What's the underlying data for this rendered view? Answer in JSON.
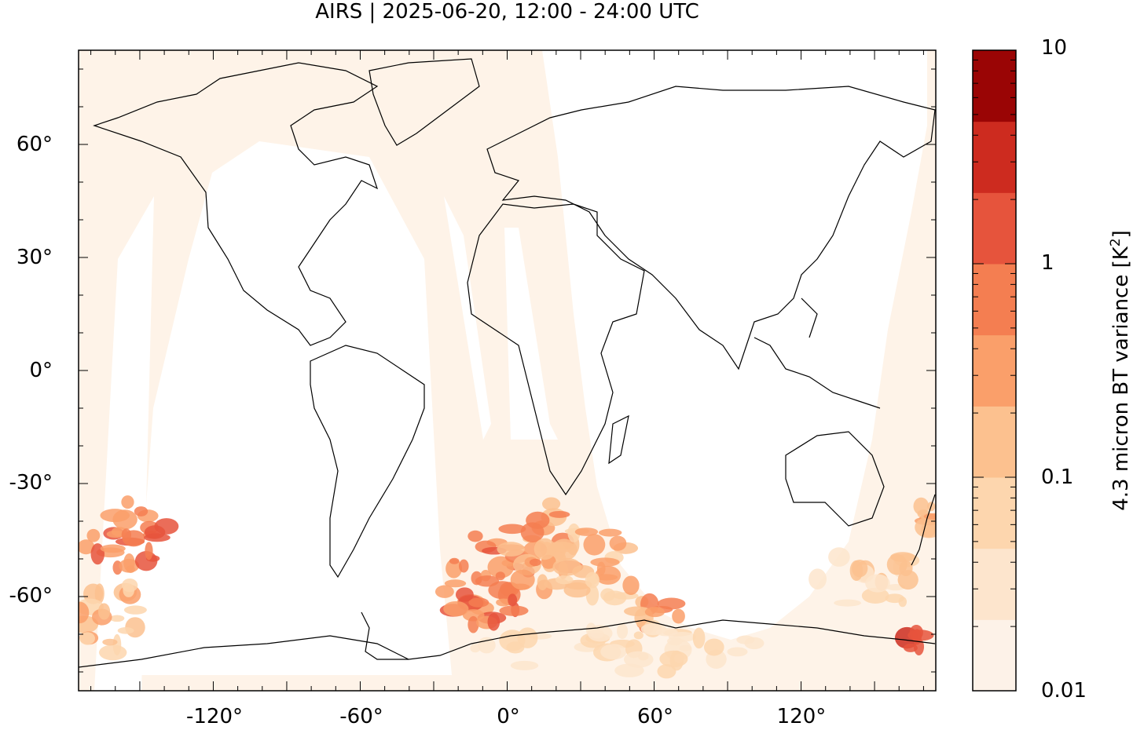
{
  "title": "AIRS | 2025-06-20, 12:00 - 24:00 UTC",
  "map": {
    "projection": "equirectangular",
    "lon_range": [
      -175,
      175
    ],
    "lat_range": [
      -85,
      85
    ],
    "x_ticks": [
      "-120°",
      "-60°",
      "0°",
      "60°",
      "120°"
    ],
    "y_ticks": [
      "60°",
      "30°",
      "0°",
      "-30°",
      "-60°"
    ],
    "overlay": "coastlines",
    "variable": "4.3 micron BT variance"
  },
  "colorbar": {
    "label_text": "4.3 micron BT variance [K",
    "label_sup": "2",
    "label_end": "]",
    "scale": "log",
    "tick_labels": [
      "10",
      "1",
      "0.1",
      "0.01"
    ],
    "colors": [
      "#fdf2e8",
      "#fde5cd",
      "#fdd6ae",
      "#fcc18f",
      "#fa9f6a",
      "#f47e51",
      "#e6543c",
      "#cd2b1f",
      "#9a0505"
    ]
  },
  "colors": {
    "swath_fill": "#fef3e8",
    "coastline": "#000000"
  }
}
